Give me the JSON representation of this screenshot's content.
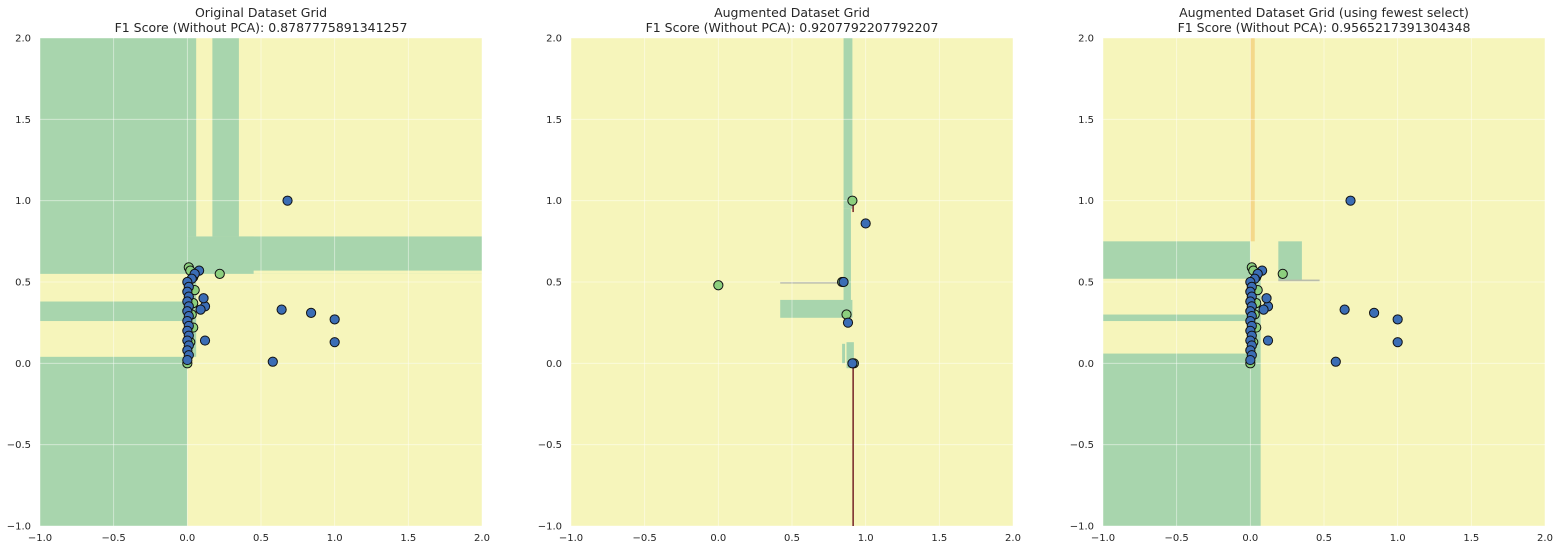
{
  "colors": {
    "region_green": "#a8d5ad",
    "region_yellow": "#f6f5bb",
    "boundary_orange": "#f4d88a",
    "boundary_gray": "#b9bcaa",
    "boundary_dark": "#7d3030",
    "point_blue": "#3b6db5",
    "point_green": "#8ccf7e",
    "grid": "#ffffff"
  },
  "chart_data": [
    {
      "type": "scatter",
      "title_line1": "Original Dataset Grid",
      "title_line2": "F1 Score (Without PCA): 0.8787775891341257",
      "xlim": [
        -1.0,
        2.0
      ],
      "ylim": [
        -1.0,
        2.0
      ],
      "xticks": [
        "−1.0",
        "−0.5",
        "0.0",
        "0.5",
        "1.0",
        "1.5",
        "2.0"
      ],
      "yticks": [
        "−1.0",
        "−0.5",
        "0.0",
        "0.5",
        "1.0",
        "1.5",
        "2.0"
      ],
      "grid": true,
      "regions": [
        {
          "class": "green",
          "x0": -1.0,
          "x1": 2.0,
          "y0": -1.0,
          "y1": 2.0
        },
        {
          "class": "yellow",
          "x0": 0.0,
          "x1": 2.0,
          "y0": 0.0,
          "y1": 0.55
        },
        {
          "class": "yellow",
          "x0": -1.0,
          "x1": 0.0,
          "y0": 0.04,
          "y1": 0.26
        },
        {
          "class": "yellow",
          "x0": -1.0,
          "x1": 0.0,
          "y0": 0.38,
          "y1": 0.55
        },
        {
          "class": "yellow",
          "x0": 0.0,
          "x1": 2.0,
          "y0": -1.0,
          "y1": 0.0
        },
        {
          "class": "yellow",
          "x0": 0.0,
          "x1": 2.0,
          "y0": 0.78,
          "y1": 2.0
        },
        {
          "class": "yellow",
          "x0": 0.45,
          "x1": 2.0,
          "y0": 0.55,
          "y1": 0.6
        },
        {
          "class": "green",
          "x0": 0.0,
          "x1": 0.06,
          "y0": 0.78,
          "y1": 2.0
        },
        {
          "class": "green",
          "x0": 0.17,
          "x1": 0.35,
          "y0": 0.78,
          "y1": 2.0
        },
        {
          "class": "green",
          "x0": 0.0,
          "x1": 0.06,
          "y0": 0.04,
          "y1": 0.55
        },
        {
          "class": "green",
          "x0": 0.35,
          "x1": 2.0,
          "y0": 0.57,
          "y1": 0.76
        },
        {
          "class": "green",
          "x0": 0.2,
          "x1": 0.45,
          "y0": 0.57,
          "y1": 0.78
        },
        {
          "class": "yellow",
          "x0": 0.0,
          "x1": 0.05,
          "y0": -1.0,
          "y1": 0.0
        }
      ],
      "points_blue": [
        [
          0.68,
          1.0
        ],
        [
          0.64,
          0.33
        ],
        [
          0.84,
          0.31
        ],
        [
          1.0,
          0.27
        ],
        [
          1.0,
          0.13
        ],
        [
          0.58,
          0.01
        ],
        [
          0.12,
          0.14
        ],
        [
          0.12,
          0.35
        ],
        [
          0.11,
          0.4
        ],
        [
          0.09,
          0.33
        ],
        [
          0.08,
          0.57
        ],
        [
          0.05,
          0.55
        ],
        [
          0.03,
          0.52
        ],
        [
          0.0,
          0.5
        ],
        [
          0.01,
          0.47
        ],
        [
          0.0,
          0.44
        ],
        [
          0.01,
          0.41
        ],
        [
          0.0,
          0.38
        ],
        [
          0.01,
          0.35
        ],
        [
          0.0,
          0.32
        ],
        [
          0.01,
          0.29
        ],
        [
          0.0,
          0.26
        ],
        [
          0.01,
          0.23
        ],
        [
          0.0,
          0.2
        ],
        [
          0.01,
          0.17
        ],
        [
          0.0,
          0.14
        ],
        [
          0.01,
          0.11
        ],
        [
          0.0,
          0.08
        ],
        [
          0.01,
          0.05
        ],
        [
          0.0,
          0.02
        ]
      ],
      "points_green": [
        [
          0.22,
          0.55
        ],
        [
          0.01,
          0.59
        ],
        [
          0.02,
          0.57
        ],
        [
          0.04,
          0.53
        ],
        [
          0.05,
          0.45
        ],
        [
          0.04,
          0.37
        ],
        [
          0.03,
          0.3
        ],
        [
          0.04,
          0.22
        ],
        [
          0.02,
          0.13
        ],
        [
          0.0,
          0.0
        ]
      ],
      "lines": []
    },
    {
      "type": "scatter",
      "title_line1": "Augmented Dataset Grid",
      "title_line2": "F1 Score (Without PCA): 0.9207792207792207",
      "xlim": [
        -1.0,
        2.0
      ],
      "ylim": [
        -1.0,
        2.0
      ],
      "xticks": [
        "−1.0",
        "−0.5",
        "0.0",
        "0.5",
        "1.0",
        "1.5",
        "2.0"
      ],
      "yticks": [
        "−1.0",
        "−0.5",
        "0.0",
        "0.5",
        "1.0",
        "1.5",
        "2.0"
      ],
      "grid": true,
      "regions": [
        {
          "class": "yellow",
          "x0": -1.0,
          "x1": 2.0,
          "y0": -1.0,
          "y1": 2.0
        },
        {
          "class": "green",
          "x0": 0.85,
          "x1": 0.91,
          "y0": 0.95,
          "y1": 2.0
        },
        {
          "class": "green",
          "x0": 0.85,
          "x1": 0.9,
          "y0": 0.35,
          "y1": 0.95
        },
        {
          "class": "green",
          "x0": 0.42,
          "x1": 0.91,
          "y0": 0.28,
          "y1": 0.39
        },
        {
          "class": "green",
          "x0": 0.87,
          "x1": 0.92,
          "y0": -0.03,
          "y1": 0.13
        },
        {
          "class": "green",
          "x0": 0.84,
          "x1": 0.86,
          "y0": 0.0,
          "y1": 0.12
        },
        {
          "class": "gray",
          "x0": 0.42,
          "x1": 0.86,
          "y0": 0.49,
          "y1": 0.5
        }
      ],
      "points_blue": [
        [
          1.0,
          0.86
        ],
        [
          0.85,
          0.5
        ],
        [
          0.88,
          0.25
        ],
        [
          0.91,
          0.0
        ]
      ],
      "points_green": [
        [
          0.91,
          1.0
        ],
        [
          0.0,
          0.48
        ],
        [
          0.84,
          0.5
        ],
        [
          0.87,
          0.3
        ],
        [
          0.92,
          0.0
        ]
      ],
      "lines": [
        {
          "x0": 0.915,
          "y0": -1.0,
          "x1": 0.915,
          "y1": 0.0
        },
        {
          "x0": 0.915,
          "y0": 0.93,
          "x1": 0.915,
          "y1": 1.0
        }
      ]
    },
    {
      "type": "scatter",
      "title_line1": "Augmented Dataset Grid (using fewest select)",
      "title_line2": "F1 Score (Without PCA): 0.9565217391304348",
      "xlim": [
        -1.0,
        2.0
      ],
      "ylim": [
        -1.0,
        2.0
      ],
      "xticks": [
        "−1.0",
        "−0.5",
        "0.0",
        "0.5",
        "1.0",
        "1.5",
        "2.0"
      ],
      "yticks": [
        "−1.0",
        "−0.5",
        "0.0",
        "0.5",
        "1.0",
        "1.5",
        "2.0"
      ],
      "grid": true,
      "regions": [
        {
          "class": "yellow",
          "x0": -1.0,
          "x1": 2.0,
          "y0": -1.0,
          "y1": 2.0
        },
        {
          "class": "green",
          "x0": -1.0,
          "x1": 0.0,
          "y0": 0.52,
          "y1": 0.75
        },
        {
          "class": "green",
          "x0": -1.0,
          "x1": 0.0,
          "y0": 0.26,
          "y1": 0.3
        },
        {
          "class": "green",
          "x0": -1.0,
          "x1": 0.0,
          "y0": -1.0,
          "y1": 0.06
        },
        {
          "class": "green",
          "x0": 0.0,
          "x1": 0.07,
          "y0": -1.0,
          "y1": 0.0
        },
        {
          "class": "green",
          "x0": 0.19,
          "x1": 0.35,
          "y0": 0.51,
          "y1": 0.75
        },
        {
          "class": "orange",
          "x0": 0.0,
          "x1": 0.03,
          "y0": 0.75,
          "y1": 2.0
        },
        {
          "class": "green",
          "x0": 0.0,
          "x1": 0.07,
          "y0": 0.0,
          "y1": 0.52
        },
        {
          "class": "gray",
          "x0": 0.19,
          "x1": 0.47,
          "y0": 0.505,
          "y1": 0.515
        }
      ],
      "points_blue": [
        [
          0.68,
          1.0
        ],
        [
          0.64,
          0.33
        ],
        [
          0.84,
          0.31
        ],
        [
          1.0,
          0.27
        ],
        [
          1.0,
          0.13
        ],
        [
          0.58,
          0.01
        ],
        [
          0.12,
          0.14
        ],
        [
          0.12,
          0.35
        ],
        [
          0.11,
          0.4
        ],
        [
          0.09,
          0.33
        ],
        [
          0.08,
          0.57
        ],
        [
          0.05,
          0.55
        ],
        [
          0.03,
          0.52
        ],
        [
          0.0,
          0.5
        ],
        [
          0.01,
          0.47
        ],
        [
          0.0,
          0.44
        ],
        [
          0.01,
          0.41
        ],
        [
          0.0,
          0.38
        ],
        [
          0.01,
          0.35
        ],
        [
          0.0,
          0.32
        ],
        [
          0.01,
          0.29
        ],
        [
          0.0,
          0.26
        ],
        [
          0.01,
          0.23
        ],
        [
          0.0,
          0.2
        ],
        [
          0.01,
          0.17
        ],
        [
          0.0,
          0.14
        ],
        [
          0.01,
          0.11
        ],
        [
          0.0,
          0.08
        ],
        [
          0.01,
          0.05
        ],
        [
          0.0,
          0.02
        ]
      ],
      "points_green": [
        [
          0.22,
          0.55
        ],
        [
          0.01,
          0.59
        ],
        [
          0.02,
          0.57
        ],
        [
          0.04,
          0.53
        ],
        [
          0.05,
          0.45
        ],
        [
          0.04,
          0.37
        ],
        [
          0.03,
          0.3
        ],
        [
          0.04,
          0.22
        ],
        [
          0.02,
          0.13
        ],
        [
          0.0,
          0.0
        ]
      ],
      "lines": []
    }
  ]
}
